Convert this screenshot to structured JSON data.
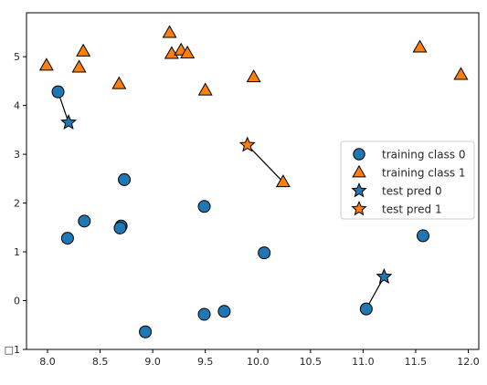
{
  "chart_data": {
    "type": "scatter",
    "title": "",
    "xlabel": "",
    "ylabel": "",
    "xlim": [
      7.8,
      12.1
    ],
    "ylim": [
      -1.0,
      5.9
    ],
    "xticks": [
      {
        "value": 8.0,
        "label": "8.0"
      },
      {
        "value": 8.5,
        "label": "8.5"
      },
      {
        "value": 9.0,
        "label": "9.0"
      },
      {
        "value": 9.5,
        "label": "9.5"
      },
      {
        "value": 10.0,
        "label": "10.0"
      },
      {
        "value": 10.5,
        "label": "10.5"
      },
      {
        "value": 11.0,
        "label": "11.0"
      },
      {
        "value": 11.5,
        "label": "11.5"
      },
      {
        "value": 12.0,
        "label": "12.0"
      }
    ],
    "yticks": [
      {
        "value": -1,
        "label": "□1"
      },
      {
        "value": 0,
        "label": "0"
      },
      {
        "value": 1,
        "label": "1"
      },
      {
        "value": 2,
        "label": "2"
      },
      {
        "value": 3,
        "label": "3"
      },
      {
        "value": 4,
        "label": "4"
      },
      {
        "value": 5,
        "label": "5"
      }
    ],
    "grid": false,
    "legend_position": "right",
    "series": [
      {
        "name": "training class 0",
        "marker": "circle",
        "color": "#1f77b4",
        "x": [
          8.1,
          8.73,
          8.35,
          8.19,
          8.7,
          8.69,
          9.49,
          10.06,
          11.57,
          11.03,
          9.68,
          9.49,
          8.93
        ],
        "y": [
          4.28,
          2.48,
          1.63,
          1.28,
          1.53,
          1.49,
          1.93,
          0.98,
          1.33,
          -0.17,
          -0.22,
          -0.28,
          -0.64
        ]
      },
      {
        "name": "training class 1",
        "marker": "triangle",
        "color": "#ff7f0e",
        "x": [
          7.99,
          8.3,
          8.34,
          8.68,
          9.16,
          9.18,
          9.27,
          9.33,
          9.5,
          9.96,
          10.24,
          11.54,
          11.93
        ],
        "y": [
          4.82,
          4.78,
          5.11,
          4.44,
          5.49,
          5.06,
          5.13,
          5.07,
          4.31,
          4.58,
          2.43,
          5.19,
          4.63
        ]
      },
      {
        "name": "test pred 0",
        "marker": "star",
        "color": "#1f77b4",
        "x": [
          8.2,
          11.2
        ],
        "y": [
          3.65,
          0.49
        ]
      },
      {
        "name": "test pred 1",
        "marker": "star",
        "color": "#ff7f0e",
        "x": [
          9.9
        ],
        "y": [
          3.19
        ]
      }
    ],
    "neighbor_lines": [
      {
        "from": [
          8.2,
          3.65
        ],
        "to": [
          8.1,
          4.28
        ]
      },
      {
        "from": [
          9.9,
          3.19
        ],
        "to": [
          10.24,
          2.43
        ]
      },
      {
        "from": [
          11.2,
          0.49
        ],
        "to": [
          11.03,
          -0.17
        ]
      }
    ]
  }
}
